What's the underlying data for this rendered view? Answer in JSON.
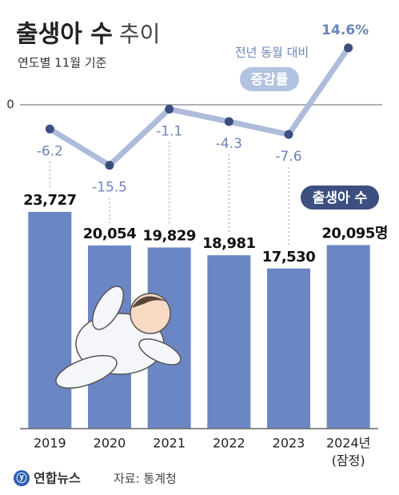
{
  "chart_data": {
    "type": "bar",
    "title": "출생아 수",
    "title_suffix": "추이",
    "subtitle": "연도별 11월 기준",
    "annotation": "전년 동월 대비",
    "categories": [
      "2019",
      "2020",
      "2021",
      "2022",
      "2023",
      "2024년"
    ],
    "last_category_note": "(잠정)",
    "series": [
      {
        "name": "출생아 수",
        "type": "bar",
        "color": "#6b86c4",
        "values": [
          23727,
          20054,
          19829,
          18981,
          17530,
          20095
        ],
        "value_labels": [
          "23,727",
          "20,054",
          "19,829",
          "18,981",
          "17,530",
          "20,095명"
        ]
      },
      {
        "name": "증감률",
        "type": "line",
        "axis": "y2",
        "color": "#aebcda",
        "marker_color": "#3c4f7e",
        "values": [
          -6.2,
          -15.5,
          -1.1,
          -4.3,
          -7.6,
          14.6
        ],
        "value_labels": [
          "-6.2",
          "-15.5",
          "-1.1",
          "-4.3",
          "-7.6",
          "14.6%"
        ]
      }
    ],
    "ylim": [
      0,
      26000
    ],
    "y2lim": [
      -17,
      16
    ],
    "y2ticks": [
      0
    ],
    "source_logo": "연합뉴스",
    "source": "자료: 통계청"
  }
}
